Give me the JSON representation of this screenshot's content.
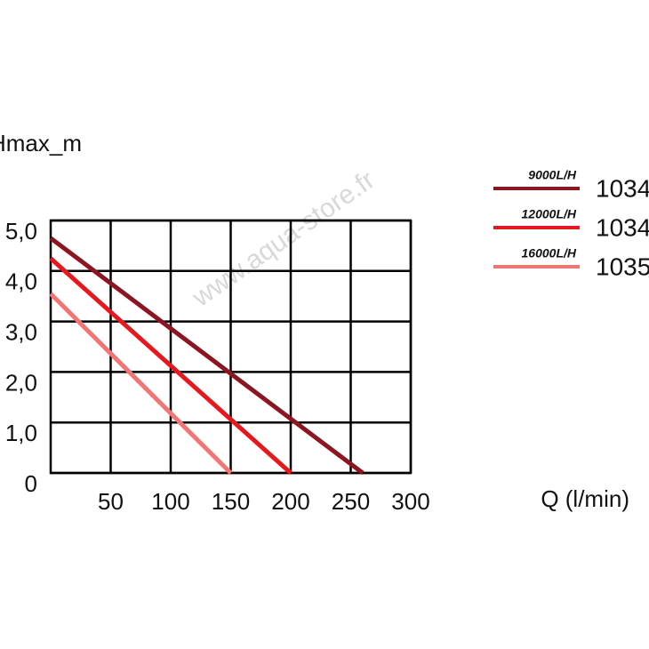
{
  "chart_data": {
    "type": "line",
    "y_label": "Hmax_m",
    "x_label": "Q (l/min)",
    "watermark": "www.aqua-store.fr",
    "xlim": [
      0,
      300
    ],
    "xticks": [
      50,
      100,
      150,
      200,
      250,
      300
    ],
    "ylim": [
      0,
      5
    ],
    "yticks": [
      0,
      {
        "value": 1,
        "label": "1,0"
      },
      {
        "value": 2,
        "label": "2,0"
      },
      {
        "value": 3,
        "label": "3,0"
      },
      {
        "value": 4,
        "label": "4,0"
      },
      {
        "value": 5,
        "label": "5,0"
      }
    ],
    "grid": true,
    "series": [
      {
        "name": "9000L/H",
        "model": "1034",
        "color": "#8b1520",
        "x": [
          0,
          260
        ],
        "values": [
          4.65,
          0
        ]
      },
      {
        "name": "12000L/H",
        "model": "1034",
        "color": "#e3191f",
        "x": [
          0,
          200
        ],
        "values": [
          4.25,
          0
        ]
      },
      {
        "name": "16000L/H",
        "model": "1035",
        "color": "#f07676",
        "x": [
          0,
          150
        ],
        "values": [
          3.55,
          0
        ]
      }
    ]
  }
}
